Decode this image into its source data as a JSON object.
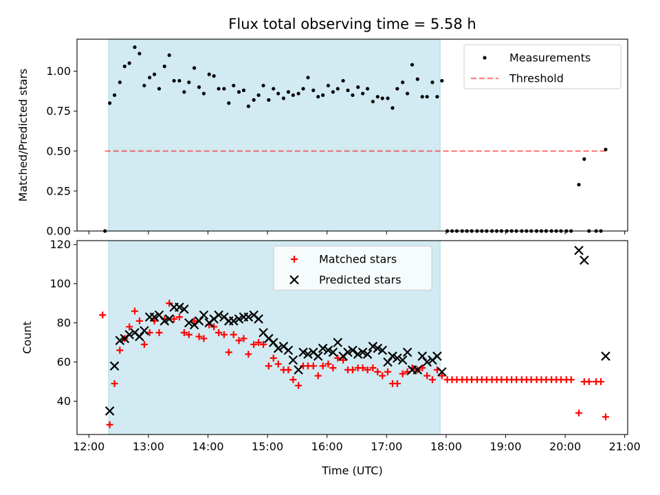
{
  "chart_data": {
    "type": "scatter",
    "title": "Flux total observing time = 5.58 h",
    "xlabel": "Time (UTC)",
    "x_unit": "hour of day (UTC)",
    "x_ticks": [
      "12:00",
      "13:00",
      "14:00",
      "15:00",
      "16:00",
      "17:00",
      "18:00",
      "19:00",
      "20:00",
      "21:00"
    ],
    "xlim": [
      11.8,
      21.05
    ],
    "observing_window": [
      12.33,
      17.9
    ],
    "colors": {
      "window": "#add8e6",
      "measurements": "#000000",
      "threshold": "#ff0000",
      "matched": "#ff0000",
      "predicted": "#000000"
    },
    "panels": [
      {
        "name": "ratio",
        "ylabel": "Matched/Predicted stars",
        "ylim": [
          0,
          1.2
        ],
        "y_ticks": [
          "0.00",
          "0.25",
          "0.50",
          "0.75",
          "1.00"
        ],
        "legend_position": "top-right",
        "threshold": {
          "name": "Threshold",
          "value": 0.5,
          "x_range": [
            12.27,
            20.7
          ],
          "style": "dashed"
        },
        "series": [
          {
            "name": "Measurements",
            "marker": "dot",
            "x": [
              12.27,
              12.35,
              12.43,
              12.52,
              12.6,
              12.68,
              12.77,
              12.85,
              12.93,
              13.02,
              13.1,
              13.18,
              13.27,
              13.35,
              13.43,
              13.52,
              13.6,
              13.68,
              13.77,
              13.85,
              13.93,
              14.02,
              14.1,
              14.18,
              14.27,
              14.35,
              14.43,
              14.52,
              14.6,
              14.68,
              14.77,
              14.85,
              14.93,
              15.02,
              15.1,
              15.18,
              15.27,
              15.35,
              15.43,
              15.52,
              15.6,
              15.68,
              15.77,
              15.85,
              15.93,
              16.02,
              16.1,
              16.18,
              16.27,
              16.35,
              16.43,
              16.52,
              16.6,
              16.68,
              16.77,
              16.85,
              16.93,
              17.02,
              17.1,
              17.18,
              17.27,
              17.35,
              17.43,
              17.52,
              17.6,
              17.68,
              17.77,
              17.85,
              17.93,
              18.02,
              18.1,
              18.18,
              18.27,
              18.35,
              18.43,
              18.52,
              18.6,
              18.68,
              18.77,
              18.85,
              18.93,
              19.02,
              19.1,
              19.18,
              19.27,
              19.35,
              19.43,
              19.52,
              19.6,
              19.68,
              19.77,
              19.85,
              19.93,
              20.02,
              20.1,
              20.23,
              20.32,
              20.4,
              20.52,
              20.6,
              20.68
            ],
            "y": [
              0.0,
              0.8,
              0.85,
              0.93,
              1.03,
              1.05,
              1.15,
              1.11,
              0.91,
              0.96,
              0.98,
              0.89,
              1.03,
              1.1,
              0.94,
              0.94,
              0.87,
              0.93,
              1.02,
              0.9,
              0.86,
              0.98,
              0.97,
              0.89,
              0.89,
              0.8,
              0.91,
              0.87,
              0.88,
              0.78,
              0.82,
              0.85,
              0.91,
              0.82,
              0.89,
              0.86,
              0.83,
              0.87,
              0.85,
              0.86,
              0.89,
              0.96,
              0.88,
              0.84,
              0.85,
              0.91,
              0.87,
              0.89,
              0.94,
              0.88,
              0.85,
              0.9,
              0.86,
              0.89,
              0.81,
              0.84,
              0.83,
              0.83,
              0.77,
              0.89,
              0.93,
              0.86,
              1.04,
              0.95,
              0.84,
              0.84,
              0.93,
              0.84,
              0.94,
              0.0,
              0.0,
              0.0,
              0.0,
              0.0,
              0.0,
              0.0,
              0.0,
              0.0,
              0.0,
              0.0,
              0.0,
              0.0,
              0.0,
              0.0,
              0.0,
              0.0,
              0.0,
              0.0,
              0.0,
              0.0,
              0.0,
              0.0,
              0.0,
              0.0,
              0.0,
              0.29,
              0.45,
              0.0,
              0.0,
              0.0,
              0.51
            ]
          }
        ]
      },
      {
        "name": "count",
        "ylabel": "Count",
        "ylim": [
          23,
          122
        ],
        "y_ticks": [
          "40",
          "60",
          "80",
          "100",
          "120"
        ],
        "legend_position": "top-center",
        "series": [
          {
            "name": "Matched stars",
            "marker": "plus",
            "x": [
              12.23,
              12.35,
              12.43,
              12.52,
              12.6,
              12.68,
              12.77,
              12.85,
              12.93,
              13.02,
              13.1,
              13.18,
              13.27,
              13.35,
              13.43,
              13.52,
              13.6,
              13.68,
              13.77,
              13.85,
              13.93,
              14.02,
              14.1,
              14.18,
              14.27,
              14.35,
              14.43,
              14.52,
              14.6,
              14.68,
              14.77,
              14.85,
              14.93,
              15.02,
              15.1,
              15.18,
              15.27,
              15.35,
              15.43,
              15.52,
              15.6,
              15.68,
              15.77,
              15.85,
              15.93,
              16.02,
              16.1,
              16.18,
              16.27,
              16.35,
              16.43,
              16.52,
              16.6,
              16.68,
              16.77,
              16.85,
              16.93,
              17.02,
              17.1,
              17.18,
              17.27,
              17.35,
              17.43,
              17.52,
              17.6,
              17.68,
              17.77,
              17.85,
              17.93,
              18.02,
              18.1,
              18.18,
              18.27,
              18.35,
              18.43,
              18.52,
              18.6,
              18.68,
              18.77,
              18.85,
              18.93,
              19.02,
              19.1,
              19.18,
              19.27,
              19.35,
              19.43,
              19.52,
              19.6,
              19.68,
              19.77,
              19.85,
              19.93,
              20.02,
              20.1,
              20.23,
              20.32,
              20.4,
              20.52,
              20.6,
              20.68
            ],
            "y": [
              84,
              28,
              49,
              66,
              72,
              78,
              86,
              81,
              69,
              75,
              81,
              75,
              82,
              90,
              82,
              83,
              75,
              74,
              81,
              73,
              72,
              79,
              78,
              75,
              74,
              65,
              74,
              71,
              72,
              64,
              69,
              70,
              69,
              58,
              62,
              59,
              56,
              56,
              51,
              48,
              58,
              58,
              58,
              53,
              58,
              59,
              57,
              62,
              61,
              56,
              56,
              57,
              57,
              56,
              57,
              55,
              53,
              55,
              49,
              49,
              54,
              55,
              57,
              56,
              57,
              53,
              51,
              56,
              53,
              51,
              51,
              51,
              51,
              51,
              51,
              51,
              51,
              51,
              51,
              51,
              51,
              51,
              51,
              51,
              51,
              51,
              51,
              51,
              51,
              51,
              51,
              51,
              51,
              51,
              51,
              34,
              50,
              50,
              50,
              50,
              32
            ]
          },
          {
            "name": "Predicted stars",
            "marker": "x",
            "x": [
              12.35,
              12.43,
              12.52,
              12.6,
              12.68,
              12.77,
              12.85,
              12.93,
              13.02,
              13.1,
              13.18,
              13.27,
              13.35,
              13.43,
              13.52,
              13.6,
              13.68,
              13.77,
              13.85,
              13.93,
              14.02,
              14.1,
              14.18,
              14.27,
              14.35,
              14.43,
              14.52,
              14.6,
              14.68,
              14.77,
              14.85,
              14.93,
              15.02,
              15.1,
              15.18,
              15.27,
              15.35,
              15.43,
              15.52,
              15.6,
              15.68,
              15.77,
              15.85,
              15.93,
              16.02,
              16.1,
              16.18,
              16.27,
              16.35,
              16.43,
              16.52,
              16.6,
              16.68,
              16.77,
              16.85,
              16.93,
              17.02,
              17.1,
              17.18,
              17.27,
              17.35,
              17.43,
              17.52,
              17.6,
              17.68,
              17.77,
              17.85,
              17.93,
              20.23,
              20.32,
              20.68
            ],
            "y": [
              35,
              58,
              71,
              72,
              74,
              75,
              73,
              76,
              83,
              83,
              84,
              81,
              82,
              88,
              88,
              87,
              80,
              79,
              81,
              84,
              80,
              82,
              84,
              83,
              81,
              81,
              82,
              83,
              83,
              84,
              82,
              75,
              72,
              70,
              67,
              68,
              66,
              61,
              56,
              65,
              64,
              65,
              63,
              67,
              66,
              65,
              70,
              63,
              65,
              66,
              64,
              65,
              64,
              68,
              67,
              66,
              60,
              63,
              62,
              61,
              65,
              56,
              56,
              63,
              60,
              61,
              63,
              55,
              117,
              112,
              63
            ]
          }
        ]
      }
    ]
  }
}
